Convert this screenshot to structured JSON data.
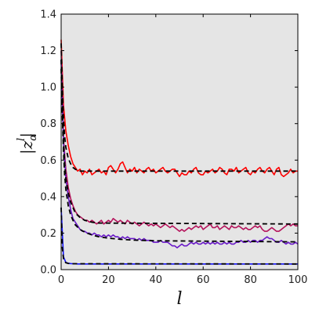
{
  "chart_data": {
    "type": "line",
    "title": "",
    "xlabel": "l",
    "ylabel_main": "|z",
    "ylabel_sub": "α",
    "ylabel_sup": "l",
    "ylabel_end": "|",
    "xlim": [
      0,
      100
    ],
    "ylim": [
      0,
      1.4
    ],
    "xticks": [
      0,
      20,
      40,
      60,
      80,
      100
    ],
    "xtick_labels": [
      "0",
      "20",
      "40",
      "60",
      "80",
      "100"
    ],
    "yticks": [
      0.0,
      0.2,
      0.4,
      0.6,
      0.8,
      1.0,
      1.2,
      1.4
    ],
    "ytick_labels": [
      "0.0",
      "0.2",
      "0.4",
      "0.6",
      "0.8",
      "1.0",
      "1.2",
      "1.4"
    ],
    "grid": false,
    "legend": "none",
    "colors": {
      "plot_background": "#e5e5e5",
      "reference": "#000000",
      "series": [
        "#ff0000",
        "#b5125b",
        "#6a19c8",
        "#1515ff"
      ]
    },
    "series": [
      {
        "x": [
          0,
          1,
          2,
          3,
          4,
          5,
          6,
          7,
          8,
          9,
          10,
          11,
          12,
          13,
          14,
          15,
          16,
          17,
          18,
          19,
          20,
          21,
          22,
          23,
          24,
          25,
          26,
          27,
          28,
          29,
          30,
          31,
          32,
          33,
          34,
          35,
          36,
          37,
          38,
          39,
          40,
          41,
          42,
          43,
          44,
          45,
          46,
          47,
          48,
          49,
          50,
          51,
          52,
          53,
          54,
          55,
          56,
          57,
          58,
          59,
          60,
          61,
          62,
          63,
          64,
          65,
          66,
          67,
          68,
          69,
          70,
          71,
          72,
          73,
          74,
          75,
          76,
          77,
          78,
          79,
          80,
          81,
          82,
          83,
          84,
          85,
          86,
          87,
          88,
          89,
          90,
          91,
          92,
          93,
          94,
          95,
          96,
          97,
          98,
          99,
          100
        ],
        "y": [
          1.26,
          0.9,
          0.76,
          0.68,
          0.62,
          0.58,
          0.56,
          0.54,
          0.55,
          0.52,
          0.54,
          0.53,
          0.55,
          0.52,
          0.53,
          0.54,
          0.55,
          0.53,
          0.54,
          0.52,
          0.56,
          0.57,
          0.55,
          0.53,
          0.55,
          0.58,
          0.59,
          0.56,
          0.53,
          0.55,
          0.54,
          0.56,
          0.53,
          0.55,
          0.54,
          0.53,
          0.55,
          0.56,
          0.54,
          0.55,
          0.53,
          0.54,
          0.55,
          0.56,
          0.54,
          0.53,
          0.54,
          0.55,
          0.55,
          0.53,
          0.51,
          0.53,
          0.52,
          0.52,
          0.54,
          0.53,
          0.55,
          0.56,
          0.53,
          0.52,
          0.52,
          0.54,
          0.53,
          0.54,
          0.55,
          0.53,
          0.54,
          0.56,
          0.55,
          0.53,
          0.52,
          0.55,
          0.55,
          0.54,
          0.56,
          0.53,
          0.54,
          0.55,
          0.56,
          0.53,
          0.52,
          0.54,
          0.53,
          0.55,
          0.56,
          0.54,
          0.53,
          0.55,
          0.56,
          0.54,
          0.52,
          0.55,
          0.56,
          0.52,
          0.51,
          0.52,
          0.53,
          0.55,
          0.53,
          0.54,
          0.54
        ]
      },
      {
        "x": [
          0,
          1,
          2,
          3,
          4,
          5,
          6,
          7,
          8,
          9,
          10,
          11,
          12,
          13,
          14,
          15,
          16,
          17,
          18,
          19,
          20,
          21,
          22,
          23,
          24,
          25,
          26,
          27,
          28,
          29,
          30,
          31,
          32,
          33,
          34,
          35,
          36,
          37,
          38,
          39,
          40,
          41,
          42,
          43,
          44,
          45,
          46,
          47,
          48,
          49,
          50,
          51,
          52,
          53,
          54,
          55,
          56,
          57,
          58,
          59,
          60,
          61,
          62,
          63,
          64,
          65,
          66,
          67,
          68,
          69,
          70,
          71,
          72,
          73,
          74,
          75,
          76,
          77,
          78,
          79,
          80,
          81,
          82,
          83,
          84,
          85,
          86,
          87,
          88,
          89,
          90,
          91,
          92,
          93,
          94,
          95,
          96,
          97,
          98,
          99,
          100
        ],
        "y": [
          1.2,
          0.72,
          0.55,
          0.45,
          0.39,
          0.35,
          0.32,
          0.3,
          0.29,
          0.28,
          0.27,
          0.27,
          0.26,
          0.27,
          0.26,
          0.25,
          0.26,
          0.27,
          0.25,
          0.26,
          0.27,
          0.26,
          0.28,
          0.27,
          0.26,
          0.27,
          0.26,
          0.25,
          0.27,
          0.26,
          0.25,
          0.26,
          0.25,
          0.24,
          0.25,
          0.26,
          0.25,
          0.24,
          0.25,
          0.24,
          0.25,
          0.24,
          0.23,
          0.24,
          0.25,
          0.24,
          0.23,
          0.24,
          0.23,
          0.22,
          0.21,
          0.22,
          0.21,
          0.22,
          0.23,
          0.22,
          0.23,
          0.24,
          0.23,
          0.24,
          0.22,
          0.23,
          0.24,
          0.25,
          0.23,
          0.23,
          0.24,
          0.22,
          0.23,
          0.24,
          0.23,
          0.22,
          0.24,
          0.23,
          0.23,
          0.24,
          0.23,
          0.22,
          0.23,
          0.22,
          0.22,
          0.23,
          0.24,
          0.23,
          0.24,
          0.22,
          0.21,
          0.21,
          0.22,
          0.23,
          0.22,
          0.21,
          0.21,
          0.22,
          0.23,
          0.24,
          0.25,
          0.24,
          0.25,
          0.24,
          0.24
        ]
      },
      {
        "x": [
          0,
          1,
          2,
          3,
          4,
          5,
          6,
          7,
          8,
          9,
          10,
          11,
          12,
          13,
          14,
          15,
          16,
          17,
          18,
          19,
          20,
          21,
          22,
          23,
          24,
          25,
          26,
          27,
          28,
          29,
          30,
          31,
          32,
          33,
          34,
          35,
          36,
          37,
          38,
          39,
          40,
          41,
          42,
          43,
          44,
          45,
          46,
          47,
          48,
          49,
          50,
          51,
          52,
          53,
          54,
          55,
          56,
          57,
          58,
          59,
          60,
          61,
          62,
          63,
          64,
          65,
          66,
          67,
          68,
          69,
          70,
          71,
          72,
          73,
          74,
          75,
          76,
          77,
          78,
          79,
          80,
          81,
          82,
          83,
          84,
          85,
          86,
          87,
          88,
          89,
          90,
          91,
          92,
          93,
          94,
          95,
          96,
          97,
          98,
          99,
          100
        ],
        "y": [
          1.15,
          0.7,
          0.5,
          0.4,
          0.33,
          0.28,
          0.26,
          0.24,
          0.22,
          0.21,
          0.21,
          0.2,
          0.2,
          0.19,
          0.2,
          0.19,
          0.19,
          0.18,
          0.19,
          0.18,
          0.19,
          0.18,
          0.19,
          0.18,
          0.18,
          0.17,
          0.18,
          0.17,
          0.18,
          0.17,
          0.17,
          0.17,
          0.16,
          0.17,
          0.16,
          0.17,
          0.16,
          0.16,
          0.16,
          0.15,
          0.15,
          0.15,
          0.16,
          0.15,
          0.15,
          0.15,
          0.14,
          0.13,
          0.13,
          0.12,
          0.13,
          0.14,
          0.13,
          0.13,
          0.14,
          0.15,
          0.14,
          0.15,
          0.14,
          0.14,
          0.15,
          0.14,
          0.15,
          0.14,
          0.15,
          0.14,
          0.15,
          0.14,
          0.14,
          0.15,
          0.14,
          0.15,
          0.14,
          0.14,
          0.15,
          0.15,
          0.16,
          0.15,
          0.15,
          0.16,
          0.15,
          0.16,
          0.16,
          0.15,
          0.16,
          0.16,
          0.17,
          0.18,
          0.17,
          0.17,
          0.16,
          0.15,
          0.15,
          0.16,
          0.15,
          0.14,
          0.15,
          0.14,
          0.14,
          0.15,
          0.14
        ]
      },
      {
        "x": [
          0,
          1,
          2,
          3,
          4,
          5,
          6,
          7,
          8,
          9,
          10,
          12,
          15,
          20,
          30,
          40,
          50,
          60,
          70,
          80,
          90,
          100
        ],
        "y": [
          0.34,
          0.07,
          0.04,
          0.035,
          0.033,
          0.032,
          0.032,
          0.031,
          0.031,
          0.031,
          0.031,
          0.031,
          0.031,
          0.031,
          0.031,
          0.031,
          0.031,
          0.031,
          0.031,
          0.031,
          0.031,
          0.031
        ]
      }
    ],
    "reference_lines": [
      {
        "x": [
          0,
          0.5,
          1,
          1.5,
          2,
          3,
          4,
          5,
          6,
          7,
          8,
          100
        ],
        "y": [
          1.24,
          1.0,
          0.83,
          0.73,
          0.67,
          0.61,
          0.58,
          0.56,
          0.55,
          0.545,
          0.54,
          0.54
        ]
      },
      {
        "x": [
          0,
          0.5,
          1,
          1.5,
          2,
          3,
          4,
          5,
          6,
          8,
          10,
          13,
          16,
          100
        ],
        "y": [
          1.15,
          0.9,
          0.7,
          0.58,
          0.5,
          0.42,
          0.37,
          0.34,
          0.31,
          0.285,
          0.27,
          0.26,
          0.255,
          0.25
        ]
      },
      {
        "x": [
          0,
          0.5,
          1,
          1.5,
          2,
          3,
          4,
          5,
          6,
          8,
          10,
          13,
          16,
          20,
          25,
          30,
          40,
          100
        ],
        "y": [
          1.1,
          0.85,
          0.65,
          0.52,
          0.44,
          0.35,
          0.3,
          0.27,
          0.245,
          0.22,
          0.205,
          0.19,
          0.18,
          0.172,
          0.166,
          0.162,
          0.158,
          0.152
        ]
      },
      {
        "x": [
          0,
          0.5,
          1,
          1.5,
          2,
          3,
          4,
          100
        ],
        "y": [
          0.34,
          0.12,
          0.06,
          0.045,
          0.038,
          0.034,
          0.032,
          0.031
        ]
      }
    ]
  }
}
